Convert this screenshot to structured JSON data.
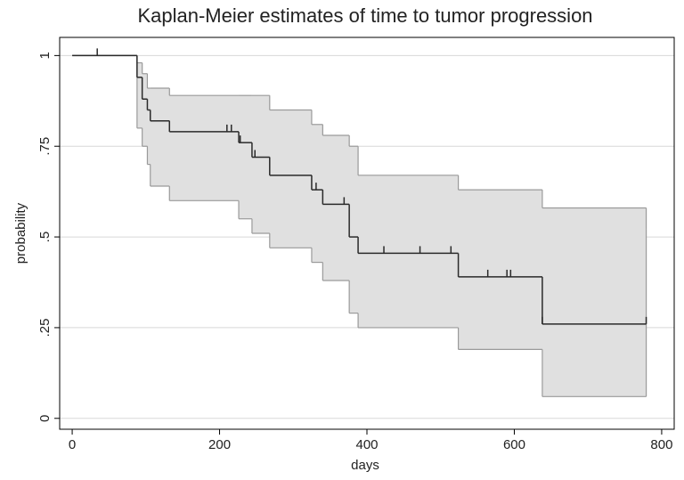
{
  "chart_data": {
    "type": "step",
    "title": "Kaplan-Meier estimates of time to tumor progression",
    "x_label": "days",
    "y_label": "probability",
    "x": [
      0,
      88,
      95,
      102,
      106,
      132,
      226,
      244,
      268,
      325,
      340,
      376,
      388,
      524,
      638,
      779
    ],
    "survival": [
      1,
      0.94,
      0.88,
      0.85,
      0.82,
      0.79,
      0.76,
      0.72,
      0.67,
      0.63,
      0.59,
      0.5,
      0.455,
      0.39,
      0.26,
      0.26
    ],
    "upper": [
      1,
      0.98,
      0.95,
      0.91,
      0.91,
      0.89,
      0.89,
      0.89,
      0.85,
      0.81,
      0.78,
      0.75,
      0.67,
      0.63,
      0.58,
      0.52
    ],
    "lower": [
      1,
      0.8,
      0.75,
      0.7,
      0.64,
      0.6,
      0.55,
      0.51,
      0.47,
      0.43,
      0.38,
      0.29,
      0.25,
      0.19,
      0.06,
      0.06
    ],
    "censored": [
      34,
      210,
      216,
      228,
      248,
      331,
      369,
      423,
      472,
      514,
      564,
      590,
      595,
      638,
      779
    ],
    "line_color": "#2a2a2a",
    "band_color": "#e0e0e0",
    "band_edge_color": "#9a9a9a",
    "xlim": [
      -17,
      817
    ],
    "ylim": [
      -0.03,
      1.05
    ],
    "xticks": [
      0,
      200,
      400,
      600,
      800
    ],
    "yticks": [
      0,
      {
        "value": 0.25,
        "label": ".25"
      },
      {
        "value": 0.5,
        "label": ".5"
      },
      {
        "value": 0.75,
        "label": ".75"
      },
      1
    ],
    "grid": true
  }
}
